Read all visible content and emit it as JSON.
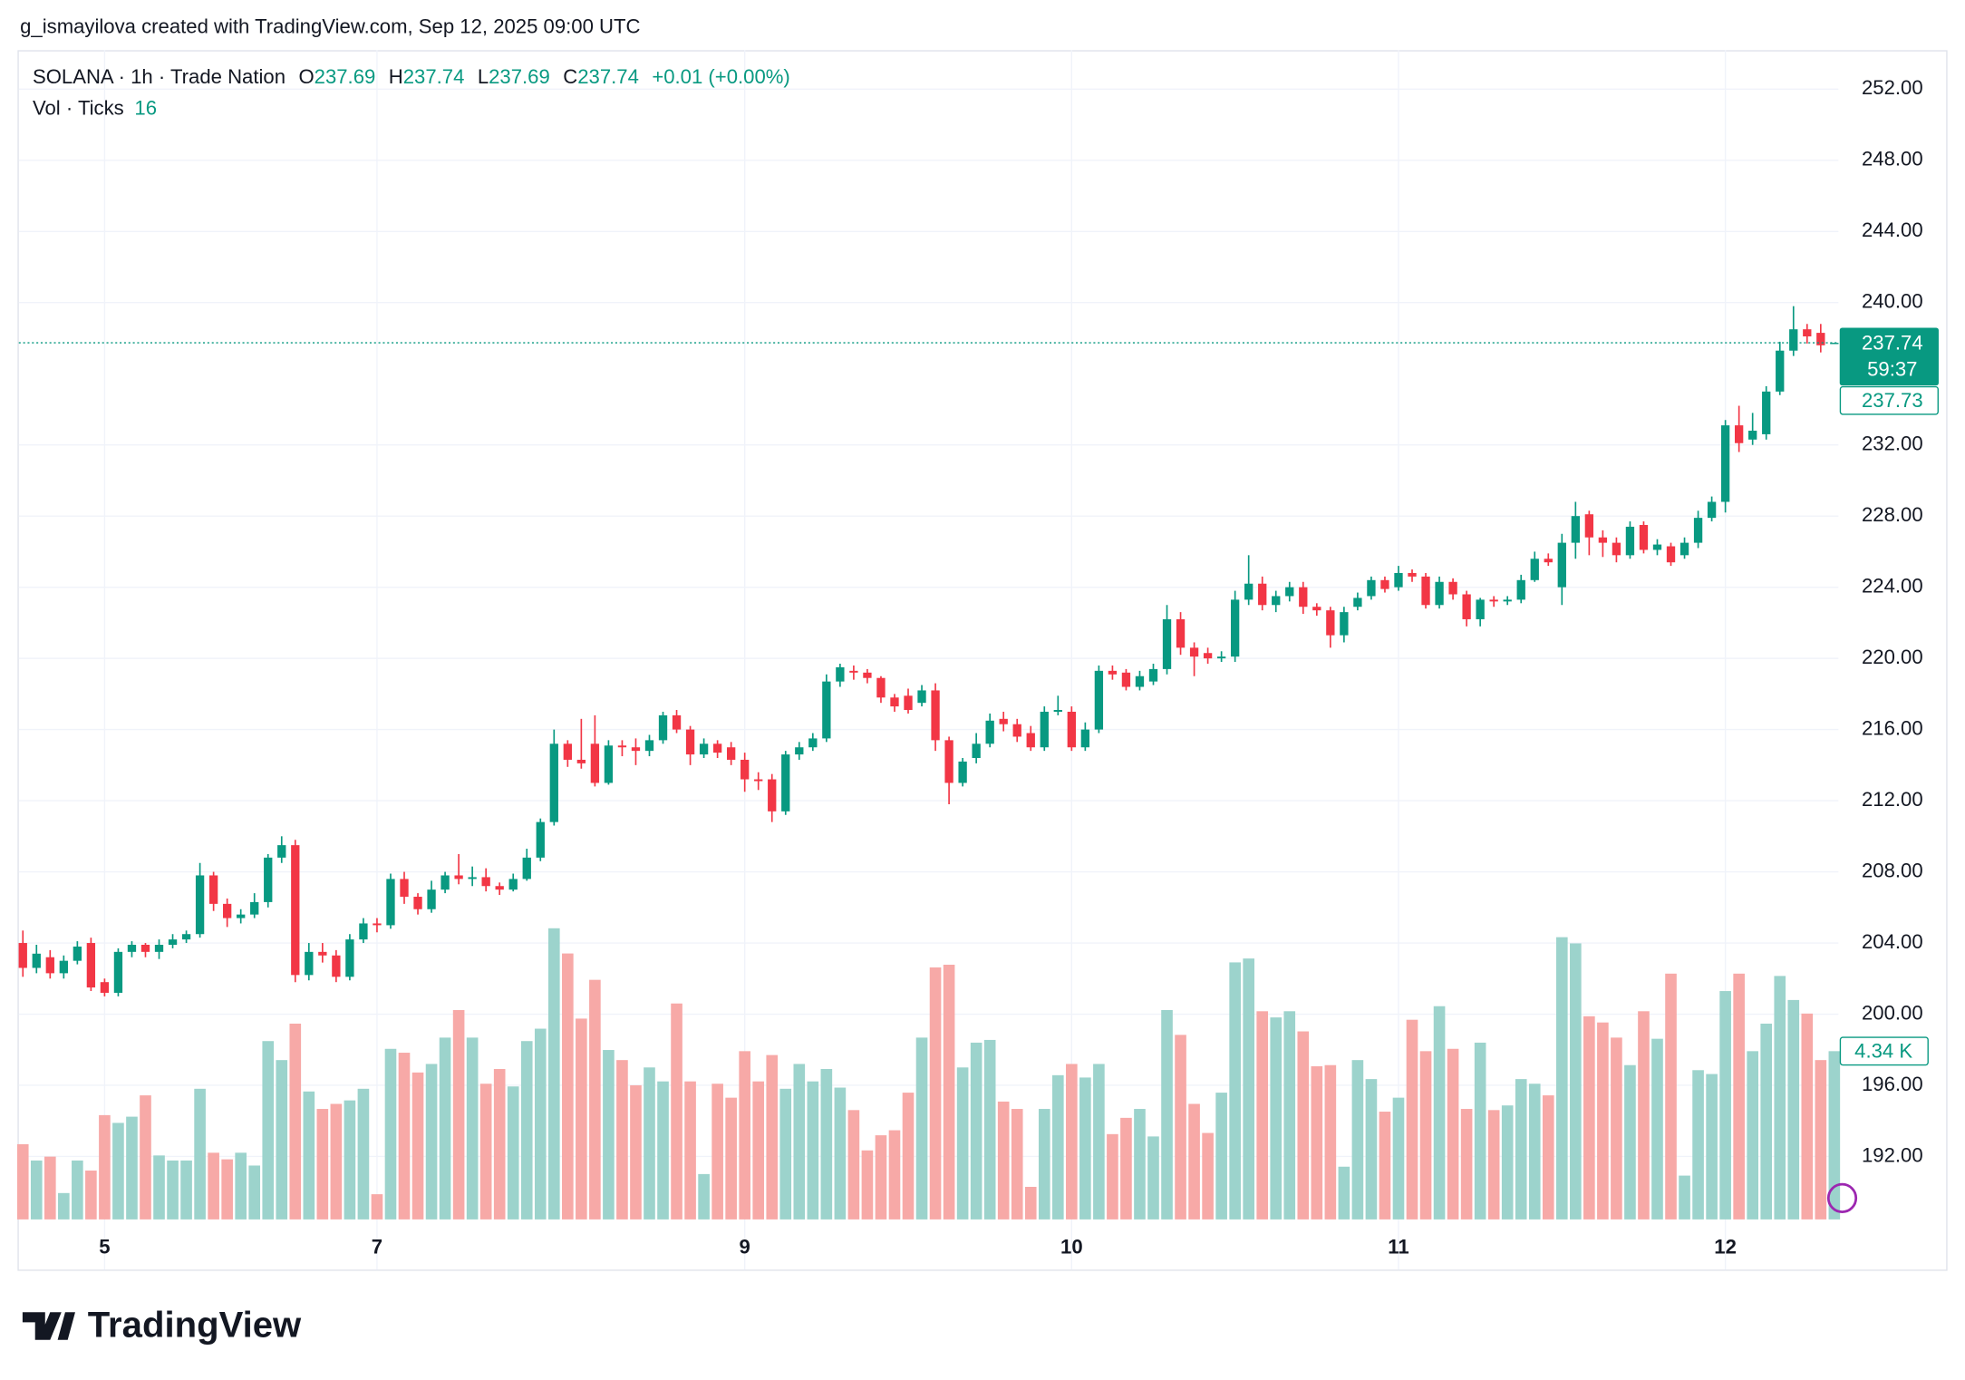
{
  "chart_data": {
    "type": "candlestick",
    "attribution": "g_ismayilova created with TradingView.com, Sep 12, 2025 09:00 UTC",
    "symbol_title": "SOLANA · 1h · Trade Nation",
    "ohlc_prefixes": [
      "O",
      "H",
      "L",
      "C"
    ],
    "change": "+0.01 (+0.00%)",
    "volume_title": "Vol · Ticks",
    "volume_length": 16,
    "countdown": "59:37",
    "second_price": 237.73,
    "volume_label": "4.34 K",
    "brand": "TradingView",
    "up_color": "#089981",
    "down_color": "#f23645",
    "up_volume_color": "#9cd3cc",
    "down_volume_color": "#f7a9a7",
    "grid": true,
    "xlim": [
      -0.3,
      133.3
    ],
    "ylim": [
      185.64,
      254.19
    ],
    "volume_ylim": [
      0,
      30160
    ],
    "xticks": [
      {
        "value": 6,
        "label": "5"
      },
      {
        "value": 26,
        "label": "7"
      },
      {
        "value": 53,
        "label": "9"
      },
      {
        "value": 77,
        "label": "10"
      },
      {
        "value": 101,
        "label": "11"
      },
      {
        "value": 125,
        "label": "12"
      }
    ],
    "yticks": [
      {
        "value": 192,
        "label": "192.00"
      },
      {
        "value": 196,
        "label": "196.00"
      },
      {
        "value": 200,
        "label": "200.00"
      },
      {
        "value": 204,
        "label": "204.00"
      },
      {
        "value": 208,
        "label": "208.00"
      },
      {
        "value": 212,
        "label": "212.00"
      },
      {
        "value": 216,
        "label": "216.00"
      },
      {
        "value": 220,
        "label": "220.00"
      },
      {
        "value": 224,
        "label": "224.00"
      },
      {
        "value": 228,
        "label": "228.00"
      },
      {
        "value": 232,
        "label": "232.00"
      },
      {
        "value": 240,
        "label": "240.00"
      },
      {
        "value": 244,
        "label": "244.00"
      },
      {
        "value": 248,
        "label": "248.00"
      },
      {
        "value": 252,
        "label": "252.00"
      }
    ],
    "open": [
      204.0,
      202.6,
      203.2,
      202.3,
      203.0,
      204.0,
      201.8,
      201.2,
      203.5,
      203.9,
      203.5,
      203.9,
      204.2,
      204.5,
      207.8,
      206.2,
      205.4,
      205.6,
      206.3,
      208.8,
      209.5,
      202.2,
      203.5,
      203.3,
      202.1,
      204.2,
      205.1,
      205.0,
      207.6,
      206.6,
      205.9,
      207.0,
      207.8,
      207.6,
      207.7,
      207.2,
      207.0,
      207.6,
      208.8,
      210.8,
      215.2,
      214.3,
      215.2,
      213.0,
      215.1,
      215.0,
      214.8,
      215.4,
      216.8,
      216.0,
      214.6,
      215.2,
      215.0,
      214.3,
      213.2,
      213.2,
      211.4,
      214.6,
      215.0,
      215.5,
      218.7,
      219.3,
      219.2,
      218.9,
      217.8,
      217.9,
      217.5,
      218.2,
      215.4,
      213.0,
      214.4,
      215.2,
      216.6,
      216.3,
      215.8,
      215.0,
      217.0,
      217.0,
      215.0,
      216.0,
      219.3,
      219.2,
      218.4,
      218.7,
      219.4,
      222.2,
      220.6,
      220.3,
      220.0,
      220.1,
      223.3,
      224.2,
      223.0,
      223.5,
      224.0,
      222.9,
      222.7,
      221.3,
      222.9,
      223.5,
      224.4,
      224.0,
      224.8,
      224.6,
      223.0,
      224.3,
      223.6,
      222.2,
      223.3,
      223.2,
      223.3,
      224.4,
      225.6,
      224.0,
      226.5,
      228.1,
      226.8,
      226.5,
      225.8,
      227.5,
      226.1,
      226.3,
      225.8,
      226.5,
      227.9,
      228.8,
      233.1,
      232.3,
      232.6,
      235.0,
      237.3,
      238.5,
      238.3,
      237.69
    ],
    "high": [
      204.7,
      203.9,
      203.6,
      203.3,
      204.1,
      204.3,
      202.0,
      203.7,
      204.1,
      204.0,
      204.2,
      204.5,
      204.7,
      208.5,
      208.0,
      206.5,
      205.9,
      206.8,
      209.0,
      210.0,
      209.8,
      204.0,
      204.0,
      203.6,
      204.5,
      205.4,
      205.4,
      207.9,
      208.0,
      206.8,
      207.5,
      208.0,
      209.0,
      208.3,
      208.2,
      207.4,
      207.9,
      209.3,
      211.0,
      216.0,
      215.4,
      216.6,
      216.8,
      215.4,
      215.4,
      215.5,
      215.7,
      217.0,
      217.1,
      216.2,
      215.5,
      215.4,
      215.3,
      214.7,
      213.6,
      213.5,
      214.8,
      215.3,
      215.8,
      219.1,
      219.7,
      219.6,
      219.4,
      219.0,
      218.0,
      218.3,
      218.5,
      218.6,
      215.6,
      214.4,
      215.8,
      216.9,
      217.0,
      216.6,
      216.2,
      217.3,
      217.9,
      217.3,
      216.4,
      219.6,
      219.6,
      219.4,
      219.3,
      219.7,
      223.0,
      222.6,
      220.9,
      220.6,
      220.4,
      223.8,
      225.8,
      224.6,
      223.8,
      224.3,
      224.3,
      223.1,
      222.9,
      222.9,
      223.7,
      224.6,
      224.6,
      225.2,
      225.0,
      224.8,
      224.6,
      224.5,
      223.8,
      223.4,
      223.5,
      223.5,
      224.7,
      226.0,
      225.9,
      227.0,
      228.8,
      228.3,
      227.2,
      226.8,
      227.7,
      227.7,
      226.7,
      226.5,
      226.8,
      228.3,
      229.1,
      233.4,
      234.2,
      233.8,
      235.3,
      237.8,
      239.8,
      238.8,
      238.8,
      237.74
    ],
    "low": [
      202.1,
      202.3,
      202.0,
      202.0,
      202.8,
      201.3,
      201.0,
      201.0,
      203.2,
      203.2,
      203.1,
      203.7,
      204.0,
      204.3,
      205.8,
      204.9,
      205.1,
      205.4,
      206.0,
      208.5,
      201.8,
      201.9,
      202.9,
      201.8,
      201.9,
      204.0,
      204.6,
      204.8,
      206.2,
      205.6,
      205.7,
      206.8,
      207.3,
      207.2,
      206.9,
      206.7,
      206.9,
      207.5,
      208.6,
      210.6,
      213.9,
      213.8,
      212.8,
      212.9,
      214.5,
      214.0,
      214.5,
      215.2,
      215.8,
      214.0,
      214.4,
      214.4,
      214.0,
      212.5,
      212.6,
      210.8,
      211.2,
      214.3,
      214.8,
      215.3,
      218.4,
      218.8,
      218.6,
      217.5,
      217.0,
      216.9,
      217.3,
      214.8,
      211.8,
      212.8,
      214.1,
      215.0,
      215.9,
      215.3,
      214.8,
      214.8,
      216.8,
      214.8,
      214.8,
      215.8,
      218.8,
      218.2,
      218.2,
      218.5,
      219.1,
      220.2,
      219.0,
      219.7,
      219.8,
      219.8,
      223.0,
      222.7,
      222.6,
      223.2,
      222.5,
      222.4,
      220.6,
      220.9,
      222.7,
      223.3,
      223.7,
      223.8,
      224.3,
      222.8,
      222.8,
      223.3,
      221.8,
      221.8,
      222.9,
      223.0,
      223.1,
      224.3,
      225.2,
      223.0,
      225.6,
      225.8,
      225.7,
      225.4,
      225.6,
      225.9,
      225.8,
      225.2,
      225.6,
      226.2,
      227.7,
      228.2,
      231.6,
      232.0,
      232.3,
      234.8,
      237.0,
      237.7,
      237.2,
      237.69
    ],
    "close": [
      202.6,
      203.4,
      202.3,
      203.0,
      203.8,
      201.5,
      201.2,
      203.5,
      203.9,
      203.5,
      203.9,
      204.2,
      204.5,
      207.8,
      206.2,
      205.4,
      205.6,
      206.3,
      208.8,
      209.5,
      202.2,
      203.5,
      203.3,
      202.1,
      204.2,
      205.1,
      205.0,
      207.6,
      206.6,
      205.9,
      207.0,
      207.8,
      207.6,
      207.7,
      207.2,
      207.0,
      207.6,
      208.8,
      210.8,
      215.2,
      214.3,
      214.1,
      213.0,
      215.1,
      215.0,
      214.8,
      215.4,
      216.8,
      216.0,
      214.6,
      215.2,
      214.7,
      214.3,
      213.2,
      213.1,
      211.4,
      214.6,
      215.0,
      215.5,
      218.7,
      219.5,
      219.2,
      218.9,
      217.8,
      217.3,
      217.1,
      218.2,
      215.4,
      213.0,
      214.2,
      215.2,
      216.5,
      216.3,
      215.6,
      215.0,
      217.0,
      217.1,
      215.0,
      216.0,
      219.3,
      219.1,
      218.4,
      219.0,
      219.4,
      222.2,
      220.6,
      220.1,
      220.0,
      220.1,
      223.3,
      224.2,
      223.0,
      223.5,
      224.0,
      222.9,
      222.7,
      221.3,
      222.6,
      223.4,
      224.4,
      223.9,
      224.8,
      224.6,
      223.0,
      224.3,
      223.6,
      222.2,
      223.3,
      223.2,
      223.3,
      224.4,
      225.6,
      225.4,
      226.5,
      228.0,
      226.8,
      226.5,
      225.8,
      227.4,
      226.1,
      226.4,
      225.4,
      226.5,
      227.9,
      228.8,
      233.1,
      232.1,
      232.8,
      235.0,
      237.3,
      238.5,
      238.1,
      237.6,
      237.74
    ],
    "volume": [
      1940,
      1520,
      1620,
      680,
      1520,
      1260,
      2690,
      2490,
      2650,
      3200,
      1650,
      1520,
      1520,
      3370,
      1720,
      1550,
      1720,
      1390,
      4600,
      4110,
      5050,
      3300,
      2850,
      2980,
      3070,
      3370,
      650,
      4400,
      4300,
      3790,
      4010,
      4690,
      5400,
      4690,
      3500,
      3880,
      3430,
      4600,
      4920,
      7510,
      6860,
      5180,
      6180,
      4370,
      4110,
      3460,
      3920,
      3560,
      5570,
      3560,
      1170,
      3500,
      3140,
      4340,
      3560,
      4240,
      3370,
      4010,
      3560,
      3880,
      3400,
      2820,
      1780,
      2170,
      2300,
      3270,
      4690,
      6500,
      6570,
      3920,
      4560,
      4630,
      3040,
      2850,
      840,
      2850,
      3720,
      4010,
      3660,
      4010,
      2200,
      2620,
      2850,
      2140,
      5400,
      4760,
      2980,
      2230,
      3270,
      6630,
      6730,
      5370,
      5210,
      5370,
      4850,
      3950,
      3980,
      1360,
      4110,
      3620,
      2780,
      3140,
      5150,
      4340,
      5500,
      4400,
      2850,
      4560,
      2820,
      2940,
      3620,
      3500,
      3200,
      7280,
      7120,
      5240,
      5080,
      4690,
      3980,
      5370,
      4660,
      6340,
      1130,
      3850,
      3750,
      5890,
      6340,
      4340,
      5050,
      6280,
      5660,
      5310,
      4110,
      4340
    ]
  }
}
